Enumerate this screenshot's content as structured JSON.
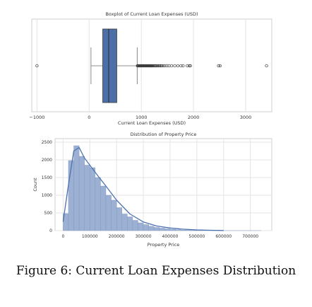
{
  "chart_data": [
    {
      "type": "box",
      "title": "Boxplot of Current Loan Expenses (USD)",
      "xlabel": "Current Loan Expenses (USD)",
      "xlim": [
        -1100,
        3500
      ],
      "xticks": [
        -1000,
        0,
        1000,
        2000,
        3000
      ],
      "grid": true,
      "box": {
        "q1": 260,
        "median": 375,
        "q3": 530,
        "whisker_low": 35,
        "whisker_high": 920
      },
      "outliers": [
        -1000,
        925,
        935,
        945,
        955,
        965,
        975,
        985,
        995,
        1005,
        1015,
        1025,
        1035,
        1045,
        1055,
        1065,
        1075,
        1085,
        1095,
        1105,
        1115,
        1125,
        1135,
        1145,
        1155,
        1165,
        1175,
        1185,
        1195,
        1205,
        1215,
        1230,
        1245,
        1260,
        1275,
        1290,
        1310,
        1330,
        1350,
        1370,
        1390,
        1420,
        1450,
        1490,
        1530,
        1580,
        1640,
        1700,
        1760,
        1800,
        1880,
        1920,
        1940,
        2480,
        2510,
        3400
      ]
    },
    {
      "type": "bar",
      "title": "Distribution of Property Price",
      "xlabel": "Property Price",
      "ylabel": "Count",
      "xlim": [
        -30000,
        780000
      ],
      "ylim": [
        0,
        2600
      ],
      "xticks": [
        0,
        100000,
        200000,
        300000,
        400000,
        500000,
        600000,
        700000
      ],
      "yticks": [
        0,
        500,
        1000,
        1500,
        2000,
        2500
      ],
      "grid": true,
      "bin_edges": [
        0,
        20000,
        40000,
        60000,
        80000,
        100000,
        120000,
        140000,
        160000,
        180000,
        200000,
        220000,
        240000,
        260000,
        280000,
        300000,
        320000,
        340000,
        360000,
        380000,
        400000,
        420000,
        440000,
        460000,
        480000,
        500000,
        520000,
        540000,
        560000,
        580000,
        600000,
        620000,
        640000,
        660000,
        680000,
        700000,
        720000,
        740000
      ],
      "values": [
        480,
        1980,
        2400,
        2100,
        1850,
        1780,
        1500,
        1260,
        1000,
        860,
        650,
        470,
        390,
        290,
        220,
        170,
        125,
        90,
        70,
        50,
        35,
        25,
        15,
        12,
        8,
        5,
        4,
        3,
        2,
        2,
        1,
        1,
        1,
        1,
        1,
        1,
        1
      ],
      "kde": {
        "x": [
          0,
          20000,
          40000,
          60000,
          80000,
          100000,
          130000,
          160000,
          200000,
          250000,
          300000,
          350000,
          400000,
          450000,
          500000,
          550000,
          600000
        ],
        "y": [
          250,
          1300,
          2250,
          2350,
          2050,
          1850,
          1550,
          1260,
          860,
          470,
          245,
          130,
          75,
          40,
          20,
          10,
          5
        ]
      }
    }
  ],
  "caption": "Figure 6: Current Loan Expenses Distribution"
}
